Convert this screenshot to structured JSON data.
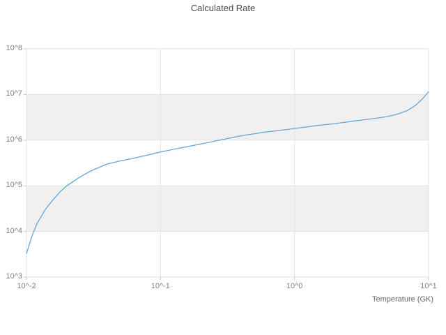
{
  "chart_data": {
    "type": "line",
    "title": "Calculated Rate",
    "xlabel": "Temperature (GK)",
    "ylabel": "",
    "xscale": "log",
    "yscale": "log",
    "xlog_range": [
      -2,
      1
    ],
    "ylog_range": [
      3,
      8
    ],
    "grid": true,
    "banded_background": true,
    "legend": "none",
    "x_ticks": [
      {
        "log": -2,
        "label": "10^-2"
      },
      {
        "log": -1,
        "label": "10^-1"
      },
      {
        "log": 0,
        "label": "10^0"
      },
      {
        "log": 1,
        "label": "10^1"
      }
    ],
    "y_ticks": [
      {
        "log": 3,
        "label": "10^3"
      },
      {
        "log": 4,
        "label": "10^4"
      },
      {
        "log": 5,
        "label": "10^5"
      },
      {
        "log": 6,
        "label": "10^6"
      },
      {
        "log": 7,
        "label": "10^7"
      },
      {
        "log": 8,
        "label": "10^8"
      }
    ],
    "x": [
      0.01,
      0.011,
      0.012,
      0.014,
      0.016,
      0.018,
      0.02,
      0.025,
      0.03,
      0.04,
      0.05,
      0.06,
      0.08,
      0.1,
      0.15,
      0.2,
      0.3,
      0.4,
      0.6,
      0.8,
      1.0,
      1.5,
      2.0,
      3.0,
      4.0,
      5.0,
      6.0,
      7.0,
      8.0,
      9.0,
      10.0
    ],
    "y": [
      3300,
      8000,
      15000,
      32000,
      52000,
      76000,
      100000,
      155000,
      210000,
      300000,
      350000,
      390000,
      470000,
      550000,
      700000,
      820000,
      1050000,
      1250000,
      1500000,
      1650000,
      1800000,
      2100000,
      2300000,
      2700000,
      3000000,
      3300000,
      3800000,
      4500000,
      5800000,
      8000000,
      11500000
    ],
    "colors": {
      "line": "#63a6d6",
      "band": "#f0f0f0",
      "grid": "#e2e2e2",
      "outline": "#e0e0e0",
      "tick": "#c9c9c9"
    }
  }
}
